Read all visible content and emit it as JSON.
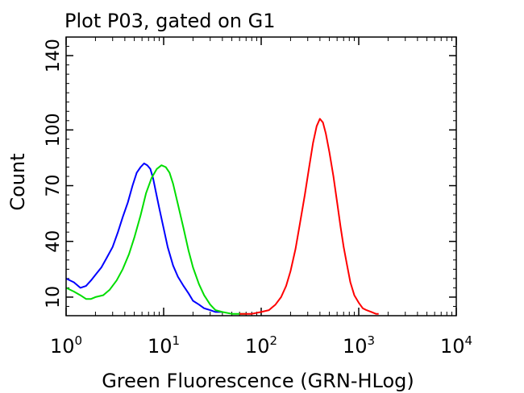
{
  "chart_data": {
    "type": "line",
    "title": "Plot P03, gated on G1",
    "xlabel": "Green Fluorescence (GRN-HLog)",
    "ylabel": "Count",
    "x_scale": "log",
    "xlim": [
      1,
      10000
    ],
    "ylim": [
      0,
      150
    ],
    "x_ticks": [
      {
        "base": "10",
        "exp": "0",
        "value": 1
      },
      {
        "base": "10",
        "exp": "1",
        "value": 10
      },
      {
        "base": "10",
        "exp": "2",
        "value": 100
      },
      {
        "base": "10",
        "exp": "3",
        "value": 1000
      },
      {
        "base": "10",
        "exp": "4",
        "value": 10000
      }
    ],
    "y_ticks": [
      {
        "label": "10",
        "value": 10
      },
      {
        "label": "40",
        "value": 40
      },
      {
        "label": "70",
        "value": 70
      },
      {
        "label": "100",
        "value": 100
      },
      {
        "label": "140",
        "value": 140
      }
    ],
    "grid": false,
    "series": [
      {
        "color": "#0000ff",
        "x": [
          1.0,
          1.2,
          1.4,
          1.6,
          1.8,
          2.0,
          2.3,
          2.6,
          3.0,
          3.4,
          3.8,
          4.3,
          4.8,
          5.3,
          5.8,
          6.3,
          6.8,
          7.3,
          7.8,
          8.3,
          9.0,
          10.0,
          11.0,
          12.5,
          14.0,
          16.0,
          18.0,
          20.0,
          23.0,
          26.0,
          30.0,
          34.0,
          40.0
        ],
        "y": [
          20,
          18,
          15,
          16,
          19,
          22,
          26,
          31,
          37,
          45,
          53,
          61,
          70,
          77,
          80,
          82,
          81,
          79,
          74,
          67,
          58,
          47,
          37,
          27,
          21,
          16,
          12,
          8,
          6,
          4,
          3,
          2,
          2
        ]
      },
      {
        "color": "#00dd00",
        "x": [
          1.0,
          1.2,
          1.4,
          1.6,
          1.8,
          2.0,
          2.4,
          2.8,
          3.3,
          3.8,
          4.4,
          5.0,
          5.8,
          6.6,
          7.5,
          8.5,
          9.5,
          10.5,
          11.5,
          12.5,
          14.0,
          16.0,
          18.0,
          20.0,
          23.0,
          26.0,
          30.0,
          34.0,
          40.0,
          50.0,
          60.0,
          70.0
        ],
        "y": [
          15,
          13,
          11,
          9,
          9,
          10,
          11,
          14,
          19,
          25,
          33,
          42,
          54,
          66,
          74,
          79,
          81,
          80,
          77,
          71,
          60,
          47,
          35,
          26,
          17,
          11,
          6,
          3,
          2,
          1,
          1,
          1
        ]
      },
      {
        "color": "#ff0000",
        "x": [
          60.0,
          80.0,
          100.0,
          120.0,
          140.0,
          160.0,
          180.0,
          200.0,
          225.0,
          250.0,
          280.0,
          310.0,
          340.0,
          370.0,
          400.0,
          430.0,
          460.0,
          500.0,
          550.0,
          600.0,
          650.0,
          700.0,
          760.0,
          820.0,
          900.0,
          1000.0,
          1100.0,
          1200.0,
          1350.0,
          1500.0,
          1600.0
        ],
        "y": [
          1,
          1,
          2,
          3,
          6,
          10,
          16,
          24,
          36,
          50,
          65,
          80,
          93,
          102,
          106,
          104,
          98,
          88,
          75,
          61,
          48,
          37,
          27,
          18,
          11,
          7,
          4,
          3,
          2,
          1,
          1
        ]
      }
    ]
  }
}
